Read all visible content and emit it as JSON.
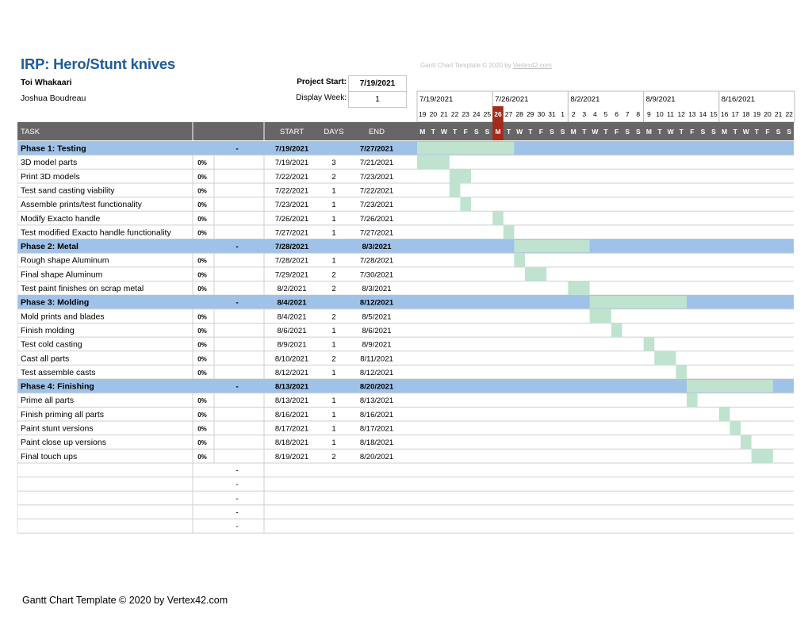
{
  "header": {
    "title": "IRP: Hero/Stunt knives",
    "owner_line1": "Toi Whakaari",
    "owner_line2": "Joshua Boudreau",
    "project_start_label": "Project Start:",
    "project_start_value": "7/19/2021",
    "display_week_label": "Display Week:",
    "display_week_value": "1",
    "copyright_small": "Gantt Chart Template © 2020 by ",
    "copyright_small_link": "Vertex42.com"
  },
  "columns": {
    "task": "TASK",
    "start": "START",
    "days": "DAYS",
    "end": "END"
  },
  "timeline": {
    "week_labels": [
      "7/19/2021",
      "7/26/2021",
      "8/2/2021",
      "8/9/2021",
      "8/16/2021"
    ],
    "day_numbers": [
      "19",
      "20",
      "21",
      "22",
      "23",
      "24",
      "25",
      "26",
      "27",
      "28",
      "29",
      "30",
      "31",
      "1",
      "2",
      "3",
      "4",
      "5",
      "6",
      "7",
      "8",
      "9",
      "10",
      "11",
      "12",
      "13",
      "14",
      "15",
      "16",
      "17",
      "18",
      "19",
      "20",
      "21",
      "22"
    ],
    "weekday_letters": [
      "M",
      "T",
      "W",
      "T",
      "F",
      "S",
      "S",
      "M",
      "T",
      "W",
      "T",
      "F",
      "S",
      "S",
      "M",
      "T",
      "W",
      "T",
      "F",
      "S",
      "S",
      "M",
      "T",
      "W",
      "T",
      "F",
      "S",
      "S",
      "M",
      "T",
      "W",
      "T",
      "F",
      "S",
      "S"
    ],
    "today_index": 7
  },
  "rows": [
    {
      "type": "phase",
      "task": "Phase 1: Testing",
      "pct": "",
      "dash": "-",
      "start": "7/19/2021",
      "days": "",
      "end": "7/27/2021",
      "bar_start": 0,
      "bar_days": 9
    },
    {
      "type": "task",
      "task": "3D model parts",
      "pct": "0%",
      "dash": "",
      "start": "7/19/2021",
      "days": "3",
      "end": "7/21/2021",
      "bar_start": 0,
      "bar_days": 3
    },
    {
      "type": "task",
      "task": "Print 3D models",
      "pct": "0%",
      "dash": "",
      "start": "7/22/2021",
      "days": "2",
      "end": "7/23/2021",
      "bar_start": 3,
      "bar_days": 2
    },
    {
      "type": "task",
      "task": "Test sand casting viability",
      "pct": "0%",
      "dash": "",
      "start": "7/22/2021",
      "days": "1",
      "end": "7/22/2021",
      "bar_start": 3,
      "bar_days": 1
    },
    {
      "type": "task",
      "task": "Assemble prints/test functionality",
      "pct": "0%",
      "dash": "",
      "start": "7/23/2021",
      "days": "1",
      "end": "7/23/2021",
      "bar_start": 4,
      "bar_days": 1
    },
    {
      "type": "task",
      "task": "Modify Exacto handle",
      "pct": "0%",
      "dash": "",
      "start": "7/26/2021",
      "days": "1",
      "end": "7/26/2021",
      "bar_start": 7,
      "bar_days": 1
    },
    {
      "type": "task",
      "task": "Test modified Exacto handle functionality",
      "pct": "0%",
      "dash": "",
      "start": "7/27/2021",
      "days": "1",
      "end": "7/27/2021",
      "bar_start": 8,
      "bar_days": 1
    },
    {
      "type": "phase",
      "task": "Phase 2: Metal",
      "pct": "",
      "dash": "-",
      "start": "7/28/2021",
      "days": "",
      "end": "8/3/2021",
      "bar_start": 9,
      "bar_days": 7
    },
    {
      "type": "task",
      "task": "Rough shape Aluminum",
      "pct": "0%",
      "dash": "",
      "start": "7/28/2021",
      "days": "1",
      "end": "7/28/2021",
      "bar_start": 9,
      "bar_days": 1
    },
    {
      "type": "task",
      "task": "Final shape Aluminum",
      "pct": "0%",
      "dash": "",
      "start": "7/29/2021",
      "days": "2",
      "end": "7/30/2021",
      "bar_start": 10,
      "bar_days": 2
    },
    {
      "type": "task",
      "task": "Test paint finishes on scrap metal",
      "pct": "0%",
      "dash": "",
      "start": "8/2/2021",
      "days": "2",
      "end": "8/3/2021",
      "bar_start": 14,
      "bar_days": 2
    },
    {
      "type": "phase",
      "task": "Phase 3: Molding",
      "pct": "",
      "dash": "-",
      "start": "8/4/2021",
      "days": "",
      "end": "8/12/2021",
      "bar_start": 16,
      "bar_days": 9
    },
    {
      "type": "task",
      "task": "Mold prints and blades",
      "pct": "0%",
      "dash": "",
      "start": "8/4/2021",
      "days": "2",
      "end": "8/5/2021",
      "bar_start": 16,
      "bar_days": 2
    },
    {
      "type": "task",
      "task": "Finish molding",
      "pct": "0%",
      "dash": "",
      "start": "8/6/2021",
      "days": "1",
      "end": "8/6/2021",
      "bar_start": 18,
      "bar_days": 1
    },
    {
      "type": "task",
      "task": "Test cold casting",
      "pct": "0%",
      "dash": "",
      "start": "8/9/2021",
      "days": "1",
      "end": "8/9/2021",
      "bar_start": 21,
      "bar_days": 1
    },
    {
      "type": "task",
      "task": "Cast all parts",
      "pct": "0%",
      "dash": "",
      "start": "8/10/2021",
      "days": "2",
      "end": "8/11/2021",
      "bar_start": 22,
      "bar_days": 2
    },
    {
      "type": "task",
      "task": "Test assemble casts",
      "pct": "0%",
      "dash": "",
      "start": "8/12/2021",
      "days": "1",
      "end": "8/12/2021",
      "bar_start": 24,
      "bar_days": 1
    },
    {
      "type": "phase",
      "task": "Phase 4: Finishing",
      "pct": "",
      "dash": "-",
      "start": "8/13/2021",
      "days": "",
      "end": "8/20/2021",
      "bar_start": 25,
      "bar_days": 8
    },
    {
      "type": "task",
      "task": "Prime all parts",
      "pct": "0%",
      "dash": "",
      "start": "8/13/2021",
      "days": "1",
      "end": "8/13/2021",
      "bar_start": 25,
      "bar_days": 1
    },
    {
      "type": "task",
      "task": "Finish priming all parts",
      "pct": "0%",
      "dash": "",
      "start": "8/16/2021",
      "days": "1",
      "end": "8/16/2021",
      "bar_start": 28,
      "bar_days": 1
    },
    {
      "type": "task",
      "task": "Paint stunt versions",
      "pct": "0%",
      "dash": "",
      "start": "8/17/2021",
      "days": "1",
      "end": "8/17/2021",
      "bar_start": 29,
      "bar_days": 1
    },
    {
      "type": "task",
      "task": "Paint close up versions",
      "pct": "0%",
      "dash": "",
      "start": "8/18/2021",
      "days": "1",
      "end": "8/18/2021",
      "bar_start": 30,
      "bar_days": 1
    },
    {
      "type": "task",
      "task": "Final touch ups",
      "pct": "0%",
      "dash": "",
      "start": "8/19/2021",
      "days": "2",
      "end": "8/20/2021",
      "bar_start": 31,
      "bar_days": 2
    },
    {
      "type": "empty",
      "task": "",
      "pct": "",
      "dash": "-",
      "start": "",
      "days": "",
      "end": "",
      "bar_start": null,
      "bar_days": 0
    },
    {
      "type": "empty",
      "task": "",
      "pct": "",
      "dash": "-",
      "start": "",
      "days": "",
      "end": "",
      "bar_start": null,
      "bar_days": 0
    },
    {
      "type": "empty",
      "task": "",
      "pct": "",
      "dash": "-",
      "start": "",
      "days": "",
      "end": "",
      "bar_start": null,
      "bar_days": 0
    },
    {
      "type": "empty",
      "task": "",
      "pct": "",
      "dash": "-",
      "start": "",
      "days": "",
      "end": "",
      "bar_start": null,
      "bar_days": 0
    },
    {
      "type": "empty",
      "task": "",
      "pct": "",
      "dash": "-",
      "start": "",
      "days": "",
      "end": "",
      "bar_start": null,
      "bar_days": 0
    }
  ],
  "footer": {
    "text": "Gantt Chart Template © 2020 by Vertex42.com"
  },
  "colors": {
    "header_bg": "#666666",
    "phase_bg": "#9fc2e8",
    "bar": "#bfe3cf",
    "today": "#a52a1a",
    "title": "#1f5c99"
  }
}
